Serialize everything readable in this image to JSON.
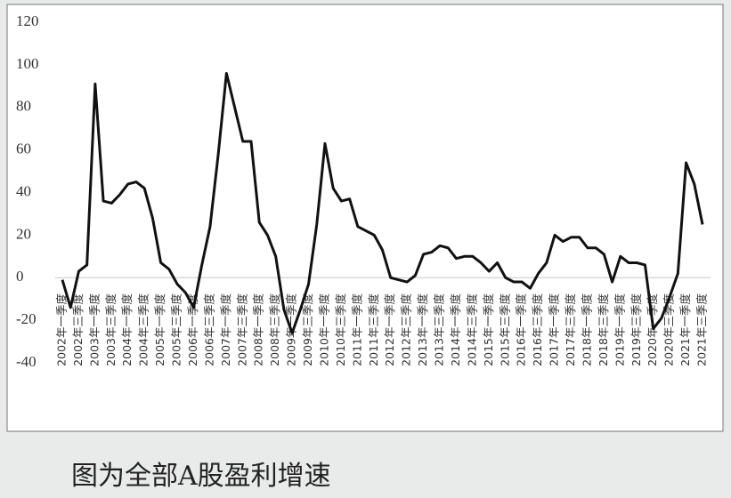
{
  "chart_data": {
    "type": "line",
    "categories": [
      "2002年一季度",
      null,
      "2002年三季度",
      null,
      "2003年一季度",
      null,
      "2003年三季度",
      null,
      "2004年一季度",
      null,
      "2004年三季度",
      null,
      "2005年一季度",
      null,
      "2005年三季度",
      null,
      "2006年一季度",
      null,
      "2006年三季度",
      null,
      "2007年一季度",
      null,
      "2007年三季度",
      null,
      "2008年一季度",
      null,
      "2008年三季度",
      null,
      "2009年一季度",
      null,
      "2009年三季度",
      null,
      "2010年一季度",
      null,
      "2010年三季度",
      null,
      "2011年一季度",
      null,
      "2011年三季度",
      null,
      "2012年一季度",
      null,
      "2012年三季度",
      null,
      "2013年一季度",
      null,
      "2013年三季度",
      null,
      "2014年一季度",
      null,
      "2014年三季度",
      null,
      "2015年一季度",
      null,
      "2015年三季度",
      null,
      "2016年一季度",
      null,
      "2016年三季度",
      null,
      "2017年一季度",
      null,
      "2017年三季度",
      null,
      "2018年一季度",
      null,
      "2018年三季度",
      null,
      "2019年一季度",
      null,
      "2019年三季度",
      null,
      "2020年一季度",
      null,
      "2020年三季度",
      null,
      "2021年一季度",
      null,
      "2021年三季度"
    ],
    "values": [
      -1,
      -14,
      3,
      6,
      91,
      36,
      35,
      39,
      44,
      45,
      42,
      28,
      7,
      4,
      -3,
      -7,
      -14,
      6,
      24,
      58,
      96,
      80,
      64,
      64,
      26,
      20,
      10,
      -15,
      -26,
      -15,
      -3,
      25,
      63,
      42,
      36,
      37,
      24,
      22,
      20,
      13,
      0,
      -1,
      -2,
      1,
      11,
      12,
      15,
      14,
      9,
      10,
      10,
      7,
      3,
      7,
      0,
      -2,
      -2,
      -5,
      2,
      7,
      20,
      17,
      19,
      19,
      14,
      14,
      11,
      -2,
      10,
      7,
      7,
      6,
      -24,
      -19,
      -9,
      2,
      54,
      44,
      25
    ],
    "color": "#111111",
    "ylim": [
      -40,
      120
    ],
    "yticks": [
      -40,
      -20,
      0,
      20,
      40,
      60,
      80,
      100,
      120
    ],
    "grid": false,
    "caption": "图为全部A股盈利增速"
  }
}
